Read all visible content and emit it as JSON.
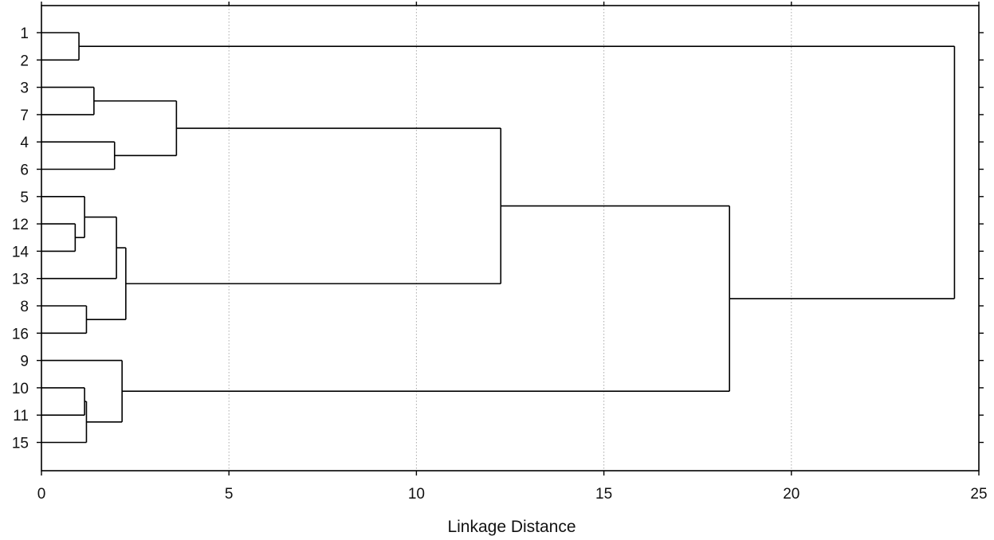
{
  "chart_data": {
    "type": "dendrogram",
    "orientation": "horizontal",
    "xlabel": "Linkage Distance",
    "xlim": [
      0,
      25
    ],
    "xticks": [
      "0",
      "5",
      "10",
      "15",
      "20",
      "25"
    ],
    "grid": "vertical dotted lines at x ticks",
    "leaf_order": [
      "1",
      "2",
      "3",
      "7",
      "4",
      "6",
      "5",
      "12",
      "14",
      "13",
      "8",
      "16",
      "9",
      "10",
      "11",
      "15"
    ],
    "merges": [
      {
        "id": "m1",
        "distance": 1.0,
        "left": "1",
        "right": "2"
      },
      {
        "id": "m2",
        "distance": 1.4,
        "left": "3",
        "right": "7"
      },
      {
        "id": "m3",
        "distance": 1.95,
        "left": "4",
        "right": "6"
      },
      {
        "id": "m4",
        "distance": 3.6,
        "left": "m2",
        "right": "m3"
      },
      {
        "id": "m5",
        "distance": 0.9,
        "left": "12",
        "right": "14"
      },
      {
        "id": "m6",
        "distance": 1.15,
        "left": "5",
        "right": "m5"
      },
      {
        "id": "m7",
        "distance": 2.0,
        "left": "m6",
        "right": "13"
      },
      {
        "id": "m8",
        "distance": 1.2,
        "left": "8",
        "right": "16"
      },
      {
        "id": "m9",
        "distance": 2.25,
        "left": "m7",
        "right": "m8"
      },
      {
        "id": "m10",
        "distance": 12.25,
        "left": "m4",
        "right": "m9"
      },
      {
        "id": "m11",
        "distance": 1.15,
        "left": "10",
        "right": "11"
      },
      {
        "id": "m12",
        "distance": 1.2,
        "left": "m11",
        "right": "15"
      },
      {
        "id": "m13",
        "distance": 2.15,
        "left": "9",
        "right": "m12"
      },
      {
        "id": "m14",
        "distance": 18.35,
        "left": "m10",
        "right": "m13"
      },
      {
        "id": "m15",
        "distance": 24.35,
        "left": "m1",
        "right": "m14"
      }
    ],
    "colors": {
      "line": "#000000",
      "grid": "#aaaaaa",
      "text": "#111111"
    }
  }
}
